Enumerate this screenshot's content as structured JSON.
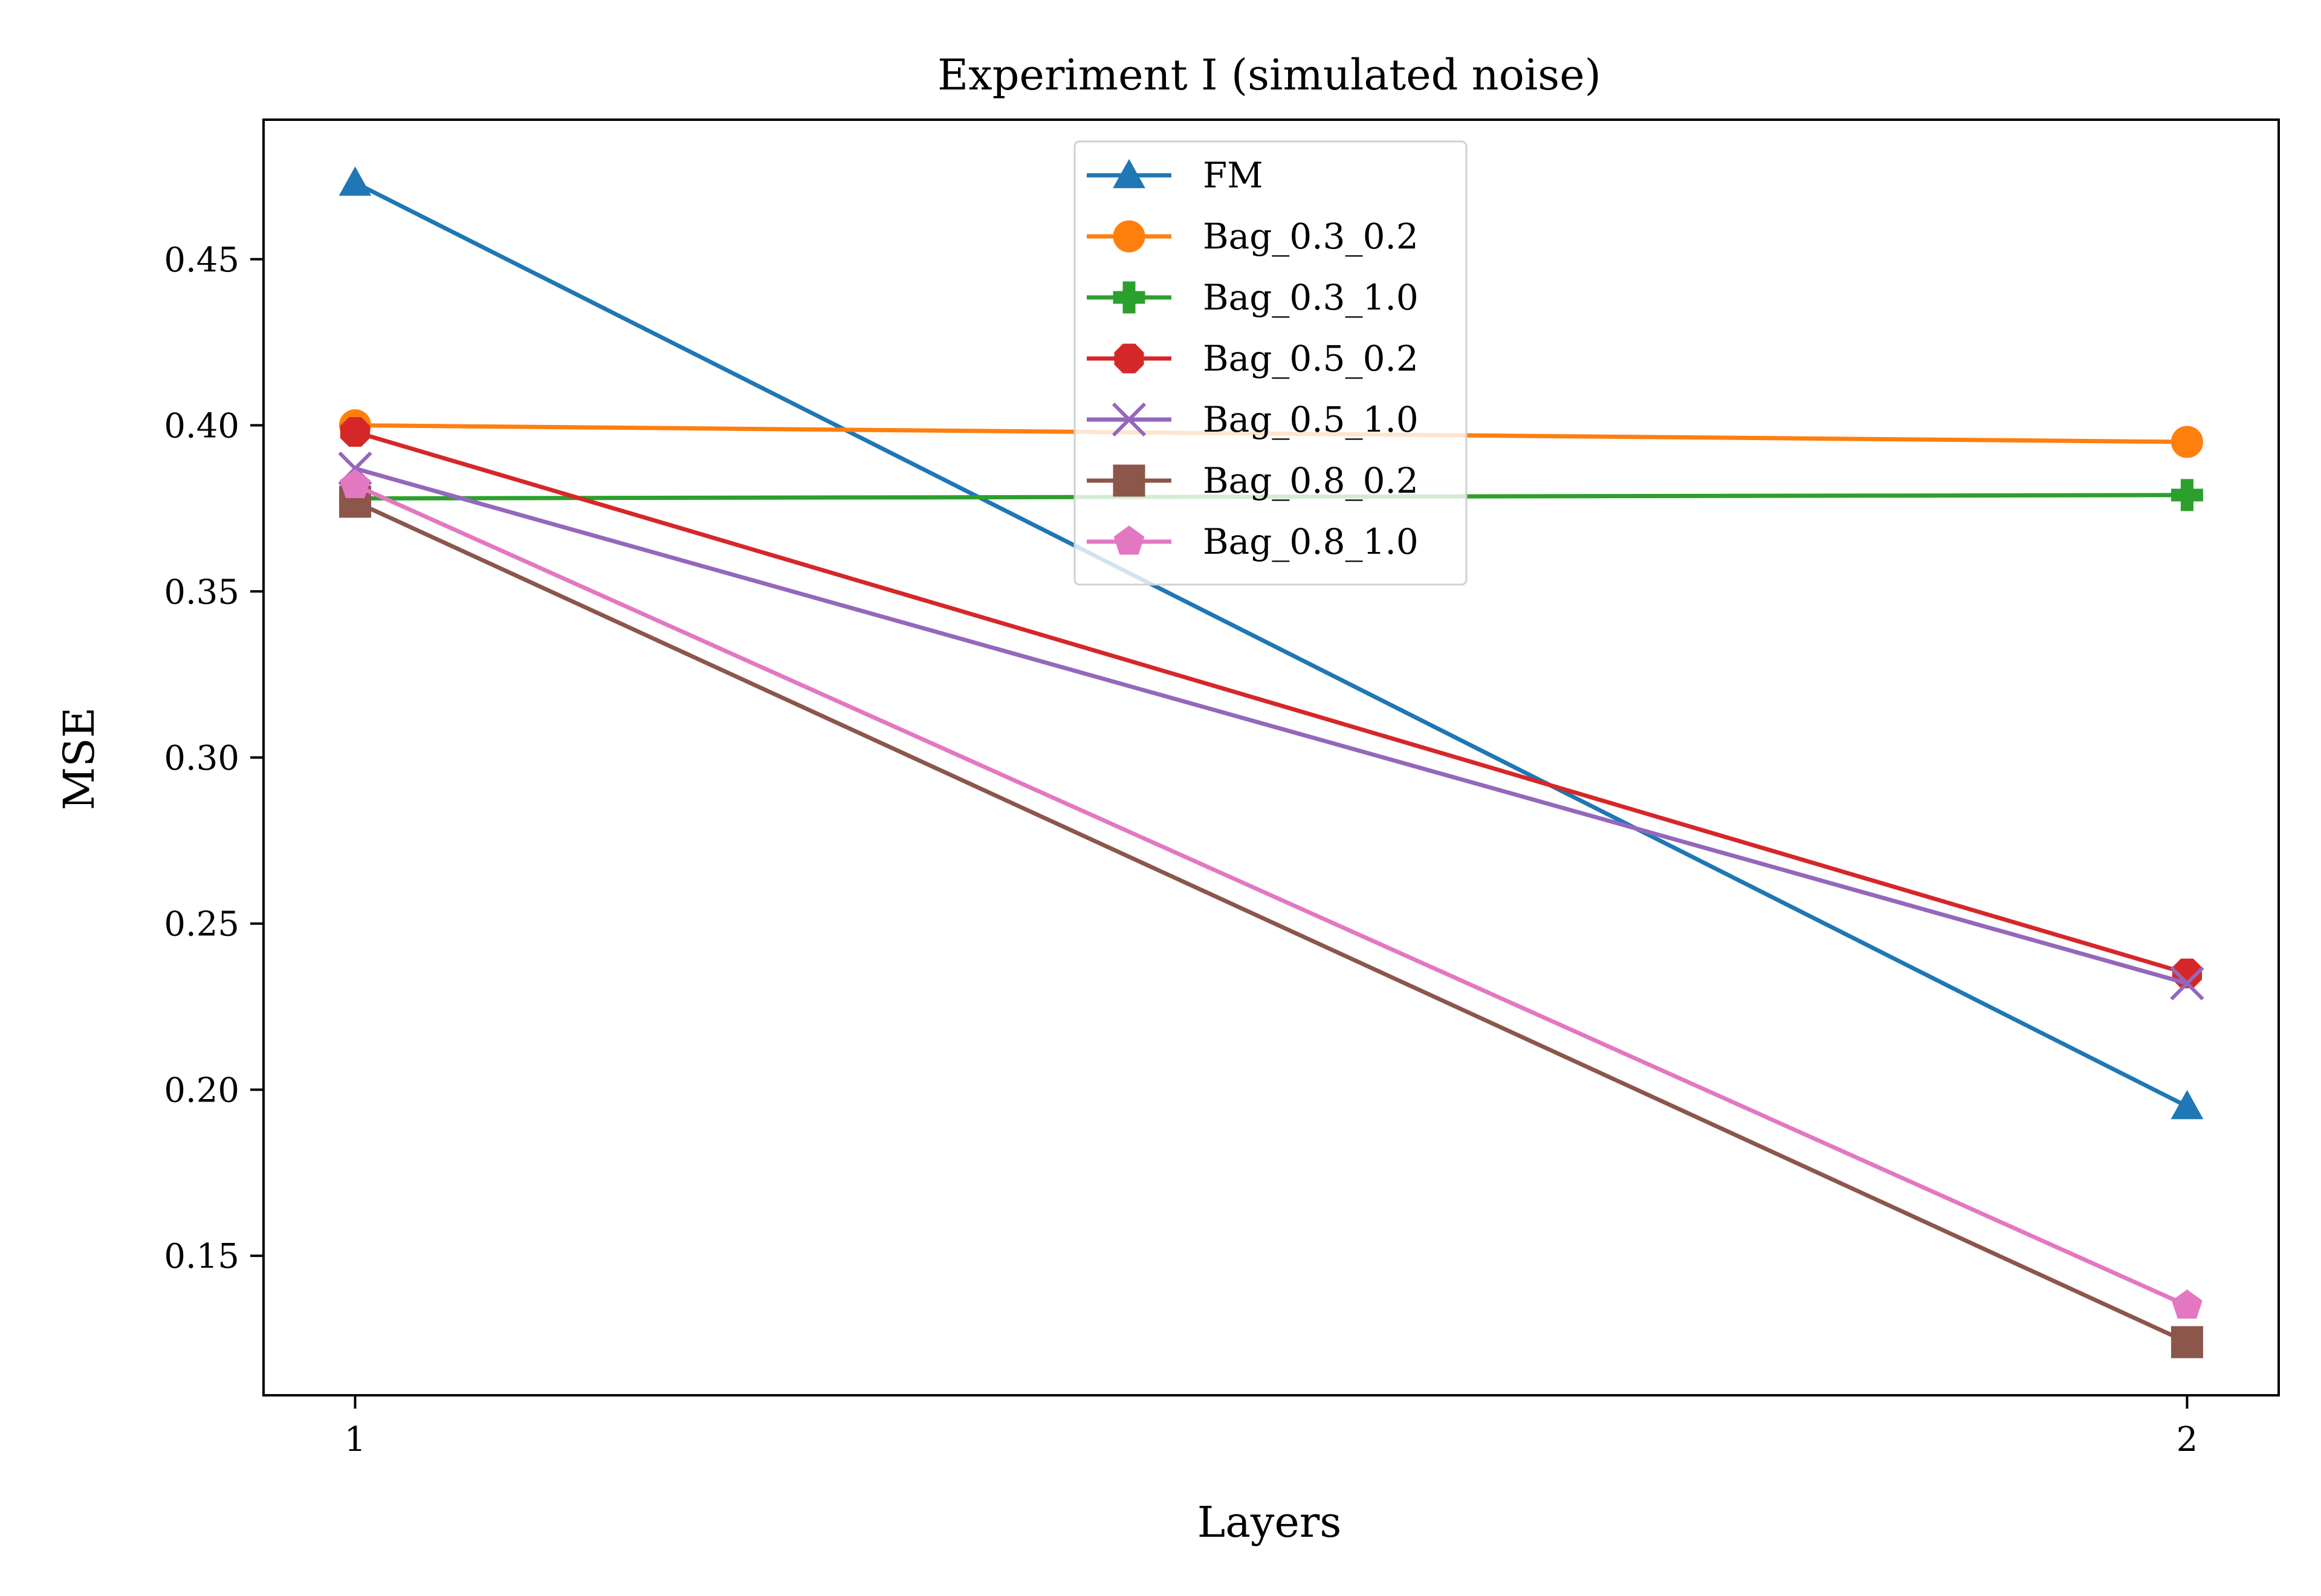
{
  "chart_data": {
    "type": "line",
    "title": "Experiment I (simulated noise)",
    "xlabel": "Layers",
    "ylabel": "MSE",
    "x": [
      1,
      2
    ],
    "xticks": [
      "1",
      "2"
    ],
    "xlim": [
      0.95,
      2.05
    ],
    "ylim": [
      0.108,
      0.492
    ],
    "yticks": [
      "0.15",
      "0.20",
      "0.25",
      "0.30",
      "0.35",
      "0.40",
      "0.45"
    ],
    "grid": false,
    "legend_position": "upper-center",
    "series": [
      {
        "name": "FM",
        "values": [
          0.473,
          0.195
        ],
        "color": "#1f77b4",
        "marker": "triangle"
      },
      {
        "name": "Bag_0.3_0.2",
        "values": [
          0.4,
          0.395
        ],
        "color": "#ff7f0e",
        "marker": "circle"
      },
      {
        "name": "Bag_0.3_1.0",
        "values": [
          0.378,
          0.379
        ],
        "color": "#2ca02c",
        "marker": "plus"
      },
      {
        "name": "Bag_0.5_0.2",
        "values": [
          0.398,
          0.235
        ],
        "color": "#d62728",
        "marker": "octagon"
      },
      {
        "name": "Bag_0.5_1.0",
        "values": [
          0.387,
          0.232
        ],
        "color": "#9467bd",
        "marker": "x"
      },
      {
        "name": "Bag_0.8_0.2",
        "values": [
          0.377,
          0.124
        ],
        "color": "#8c564b",
        "marker": "square"
      },
      {
        "name": "Bag_0.8_1.0",
        "values": [
          0.382,
          0.135
        ],
        "color": "#e377c2",
        "marker": "pentagon"
      }
    ]
  }
}
